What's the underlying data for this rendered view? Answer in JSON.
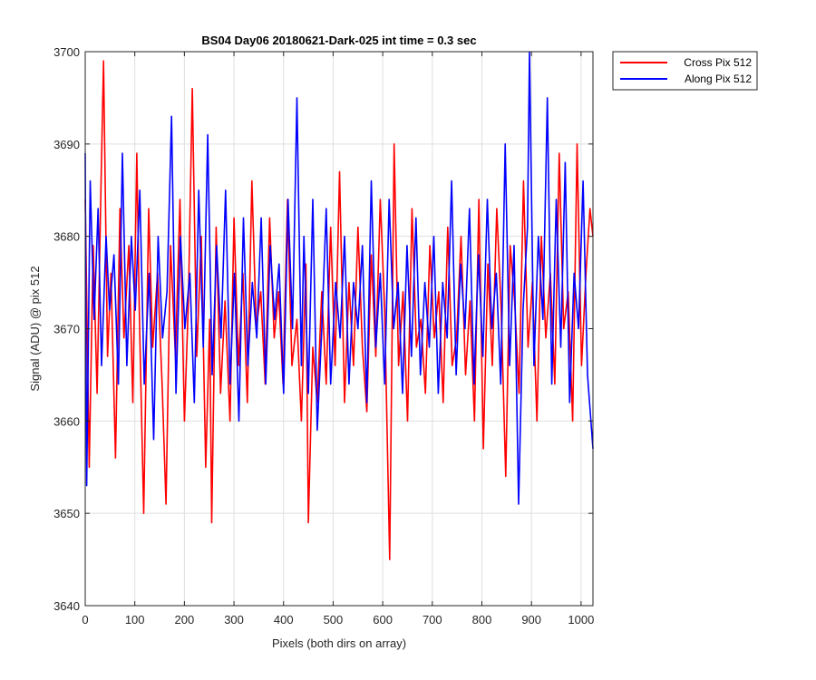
{
  "chart_data": {
    "type": "line",
    "title": "BS04 Day06 20180621-Dark-025 int time = 0.3 sec",
    "xlabel": "Pixels (both dirs on array)",
    "ylabel": "Signal (ADU) @ pix 512",
    "xlim": [
      0,
      1024
    ],
    "ylim": [
      3640,
      3700
    ],
    "xticks": [
      0,
      100,
      200,
      300,
      400,
      500,
      600,
      700,
      800,
      900,
      1000
    ],
    "yticks": [
      3640,
      3650,
      3660,
      3670,
      3680,
      3690,
      3700
    ],
    "grid": true,
    "legend_position": "outside-top-right",
    "series": [
      {
        "name": "Cross Pix 512",
        "color": "#ff0000",
        "x": [
          0,
          8,
          16,
          24,
          32,
          37,
          45,
          52,
          61,
          70,
          78,
          88,
          96,
          104,
          109,
          118,
          128,
          136,
          146,
          155,
          163,
          172,
          182,
          191,
          200,
          208,
          216,
          225,
          234,
          243,
          251,
          255,
          264,
          273,
          282,
          292,
          300,
          309,
          318,
          327,
          336,
          345,
          354,
          363,
          372,
          381,
          390,
          399,
          408,
          417,
          427,
          436,
          445,
          450,
          459,
          468,
          477,
          486,
          495,
          504,
          513,
          523,
          532,
          541,
          550,
          559,
          568,
          577,
          586,
          595,
          604,
          614,
          623,
          632,
          641,
          650,
          659,
          668,
          677,
          686,
          695,
          704,
          713,
          722,
          731,
          740,
          749,
          758,
          767,
          776,
          785,
          794,
          803,
          812,
          821,
          830,
          839,
          848,
          857,
          866,
          875,
          884,
          893,
          902,
          911,
          920,
          929,
          938,
          947,
          956,
          965,
          974,
          983,
          992,
          1001,
          1010,
          1018,
          1024
        ],
        "y": [
          3684,
          3655,
          3679,
          3663,
          3686,
          3699,
          3667,
          3676,
          3656,
          3683,
          3669,
          3679,
          3662,
          3689,
          3672,
          3650,
          3683,
          3668,
          3676,
          3664,
          3651,
          3679,
          3667,
          3684,
          3660,
          3673,
          3696,
          3667,
          3680,
          3655,
          3671,
          3649,
          3681,
          3663,
          3673,
          3660,
          3682,
          3666,
          3676,
          3662,
          3686,
          3670,
          3674,
          3664,
          3682,
          3669,
          3674,
          3664,
          3684,
          3666,
          3671,
          3660,
          3677,
          3649,
          3668,
          3662,
          3674,
          3664,
          3681,
          3666,
          3687,
          3662,
          3675,
          3666,
          3681,
          3668,
          3661,
          3678,
          3667,
          3684,
          3672,
          3645,
          3690,
          3666,
          3674,
          3660,
          3683,
          3668,
          3671,
          3663,
          3679,
          3669,
          3674,
          3662,
          3681,
          3666,
          3669,
          3680,
          3665,
          3673,
          3660,
          3684,
          3657,
          3677,
          3666,
          3683,
          3672,
          3654,
          3679,
          3673,
          3663,
          3686,
          3668,
          3675,
          3660,
          3680,
          3669,
          3676,
          3664,
          3689,
          3670,
          3674,
          3660,
          3690,
          3666,
          3676,
          3683,
          3680
        ]
      },
      {
        "name": "Along Pix 512",
        "color": "#0000ff",
        "x": [
          0,
          3,
          10,
          18,
          26,
          33,
          42,
          49,
          58,
          67,
          75,
          84,
          93,
          101,
          110,
          119,
          129,
          138,
          147,
          156,
          165,
          174,
          183,
          192,
          201,
          211,
          220,
          229,
          238,
          247,
          256,
          265,
          274,
          283,
          292,
          301,
          310,
          319,
          328,
          337,
          346,
          355,
          364,
          373,
          382,
          391,
          400,
          409,
          418,
          427,
          436,
          441,
          450,
          459,
          468,
          477,
          486,
          495,
          505,
          514,
          523,
          532,
          541,
          550,
          559,
          568,
          577,
          586,
          595,
          604,
          613,
          622,
          631,
          640,
          649,
          658,
          667,
          676,
          685,
          694,
          703,
          712,
          721,
          730,
          739,
          748,
          757,
          766,
          775,
          784,
          793,
          802,
          811,
          820,
          829,
          838,
          847,
          856,
          865,
          874,
          883,
          892,
          896,
          905,
          914,
          923,
          932,
          941,
          950,
          959,
          968,
          977,
          986,
          995,
          1004,
          1013,
          1024
        ],
        "y": [
          3689,
          3653,
          3686,
          3671,
          3683,
          3666,
          3680,
          3672,
          3678,
          3664,
          3689,
          3666,
          3680,
          3672,
          3685,
          3664,
          3676,
          3658,
          3680,
          3669,
          3674,
          3693,
          3663,
          3680,
          3670,
          3676,
          3662,
          3685,
          3668,
          3691,
          3665,
          3679,
          3669,
          3685,
          3664,
          3676,
          3660,
          3682,
          3666,
          3675,
          3669,
          3682,
          3664,
          3679,
          3671,
          3677,
          3663,
          3684,
          3670,
          3695,
          3666,
          3680,
          3663,
          3684,
          3659,
          3670,
          3683,
          3664,
          3675,
          3669,
          3680,
          3664,
          3675,
          3670,
          3679,
          3662,
          3686,
          3668,
          3676,
          3664,
          3684,
          3670,
          3675,
          3663,
          3679,
          3667,
          3682,
          3665,
          3675,
          3668,
          3680,
          3663,
          3675,
          3669,
          3686,
          3665,
          3677,
          3670,
          3683,
          3664,
          3678,
          3667,
          3684,
          3670,
          3676,
          3664,
          3690,
          3666,
          3679,
          3651,
          3672,
          3681,
          3700,
          3666,
          3680,
          3671,
          3695,
          3664,
          3684,
          3668,
          3688,
          3662,
          3676,
          3670,
          3686,
          3665,
          3657
        ]
      }
    ]
  }
}
